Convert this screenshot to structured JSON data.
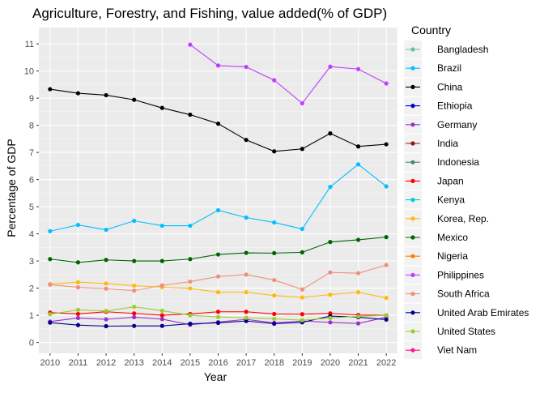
{
  "chart_data": {
    "type": "line",
    "title": "Agriculture, Forestry, and Fishing, value added(% of GDP)",
    "xlabel": "Year",
    "ylabel": "Percentage of GDP",
    "x": [
      2010,
      2011,
      2012,
      2013,
      2014,
      2015,
      2016,
      2017,
      2018,
      2019,
      2020,
      2021,
      2022
    ],
    "xlim": [
      2009.6,
      2022.4
    ],
    "ylim": [
      -0.4,
      11.6
    ],
    "yticks": [
      0,
      1,
      2,
      3,
      4,
      5,
      6,
      7,
      8,
      9,
      10,
      11
    ],
    "grid": true,
    "legend": {
      "title": "Country",
      "position": "right"
    },
    "series": [
      {
        "name": "Bangladesh",
        "color": "#66C2A5",
        "values": [
          null,
          null,
          null,
          null,
          null,
          null,
          null,
          null,
          null,
          null,
          null,
          null,
          null
        ]
      },
      {
        "name": "Brazil",
        "color": "#00BFFF",
        "values": [
          4.1,
          4.33,
          4.15,
          4.48,
          4.3,
          4.3,
          4.87,
          4.6,
          4.42,
          4.18,
          5.73,
          6.56,
          5.75
        ]
      },
      {
        "name": "China",
        "color": "#000000",
        "values": [
          9.33,
          9.18,
          9.11,
          8.94,
          8.64,
          8.39,
          8.06,
          7.46,
          7.04,
          7.13,
          7.7,
          7.22,
          7.3
        ]
      },
      {
        "name": "Ethiopia",
        "color": "#0000CD",
        "values": [
          null,
          null,
          null,
          null,
          null,
          null,
          null,
          null,
          null,
          null,
          null,
          null,
          null
        ]
      },
      {
        "name": "Germany",
        "color": "#9932CC",
        "values": [
          0.77,
          0.9,
          0.85,
          0.93,
          0.86,
          0.65,
          0.75,
          0.85,
          0.72,
          0.79,
          0.74,
          0.7,
          0.93
        ]
      },
      {
        "name": "India",
        "color": "#8B1A1A",
        "values": [
          null,
          null,
          null,
          null,
          null,
          null,
          null,
          null,
          null,
          null,
          null,
          null,
          null
        ]
      },
      {
        "name": "Indonesia",
        "color": "#458B74",
        "values": [
          null,
          null,
          null,
          null,
          null,
          null,
          null,
          null,
          null,
          null,
          null,
          null,
          null
        ]
      },
      {
        "name": "Japan",
        "color": "#FF0000",
        "values": [
          1.1,
          1.05,
          1.13,
          1.07,
          1.0,
          1.05,
          1.13,
          1.13,
          1.05,
          1.04,
          1.07,
          1.01,
          1.0
        ]
      },
      {
        "name": "Kenya",
        "color": "#00CED1",
        "values": [
          null,
          null,
          null,
          null,
          null,
          null,
          null,
          null,
          null,
          null,
          null,
          null,
          null
        ]
      },
      {
        "name": "Korea, Rep.",
        "color": "#FFB90F",
        "values": [
          2.15,
          2.22,
          2.17,
          2.09,
          2.04,
          1.99,
          1.85,
          1.85,
          1.73,
          1.66,
          1.76,
          1.85,
          1.64
        ]
      },
      {
        "name": "Mexico",
        "color": "#006400",
        "values": [
          3.07,
          2.95,
          3.04,
          3.0,
          3.0,
          3.07,
          3.24,
          3.3,
          3.29,
          3.32,
          3.7,
          3.78,
          3.88
        ]
      },
      {
        "name": "Nigeria",
        "color": "#FF7F00",
        "values": [
          null,
          null,
          null,
          null,
          null,
          null,
          null,
          null,
          null,
          null,
          null,
          null,
          null
        ]
      },
      {
        "name": "Philippines",
        "color": "#BF3EFF",
        "values": [
          null,
          null,
          null,
          null,
          null,
          10.97,
          10.2,
          10.15,
          9.66,
          8.81,
          10.16,
          10.07,
          9.54
        ]
      },
      {
        "name": "South Africa",
        "color": "#F08F7C",
        "values": [
          2.13,
          2.03,
          1.98,
          1.91,
          2.1,
          2.24,
          2.43,
          2.5,
          2.3,
          1.95,
          2.58,
          2.55,
          2.85
        ]
      },
      {
        "name": "United Arab Emirates",
        "color": "#00008B",
        "values": [
          0.73,
          0.64,
          0.6,
          0.61,
          0.61,
          0.69,
          0.72,
          0.79,
          0.69,
          0.74,
          0.97,
          0.93,
          0.84
        ]
      },
      {
        "name": "United States",
        "color": "#9ACD32",
        "values": [
          1.04,
          1.2,
          1.16,
          1.31,
          1.17,
          1.0,
          0.94,
          0.91,
          0.87,
          0.82,
          0.9,
          0.96,
          1.0
        ]
      },
      {
        "name": "Viet Nam",
        "color": "#FF1493",
        "values": [
          null,
          null,
          null,
          null,
          null,
          null,
          null,
          null,
          null,
          null,
          null,
          null,
          null
        ]
      }
    ]
  }
}
